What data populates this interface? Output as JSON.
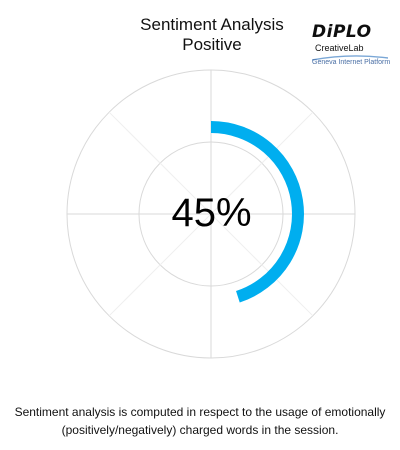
{
  "chart_data": {
    "type": "gauge",
    "title": "Sentiment Analysis",
    "subtitle": "Positive",
    "value": 45,
    "range": [
      0,
      100
    ],
    "value_label": "45%",
    "colors": {
      "arc": "#00aeef",
      "grid": "#d9d9d9"
    }
  },
  "logo": {
    "name": "DiPLO",
    "subtitle": "CreativeLab",
    "platform": "Geneva Internet Platform"
  },
  "caption": "Sentiment analysis is computed in respect to the usage of emotionally (positively/negatively) charged words in the session."
}
